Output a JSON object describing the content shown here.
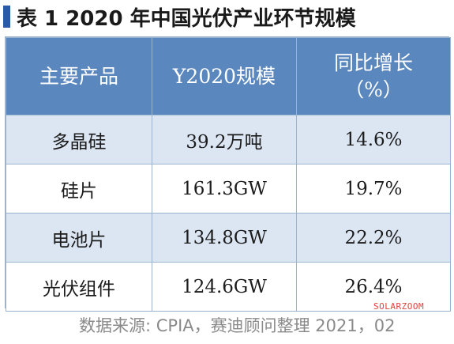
{
  "title": "表 1  2020 年中国光伏产业环节规模",
  "table": {
    "headers": {
      "product": "主要产品",
      "scale": "Y2020规模",
      "growth_line1": "同比增长",
      "growth_line2": "（%）"
    },
    "rows": [
      {
        "product": "多晶硅",
        "scale": "39.2万吨",
        "growth": "14.6%"
      },
      {
        "product": "硅片",
        "scale": "161.3GW",
        "growth": "19.7%"
      },
      {
        "product": "电池片",
        "scale": "134.8GW",
        "growth": "22.2%"
      },
      {
        "product": "光伏组件",
        "scale": "124.6GW",
        "growth": "26.4%"
      }
    ]
  },
  "source": "数据来源: CPIA，赛迪顾问整理  2021，02",
  "watermark": "SOLARZOOM",
  "colors": {
    "header_bg": "#5b87bf",
    "row_alt_bg": "#dce6f3",
    "title_marker": "#2a5aa8",
    "watermark": "#e0443a"
  }
}
